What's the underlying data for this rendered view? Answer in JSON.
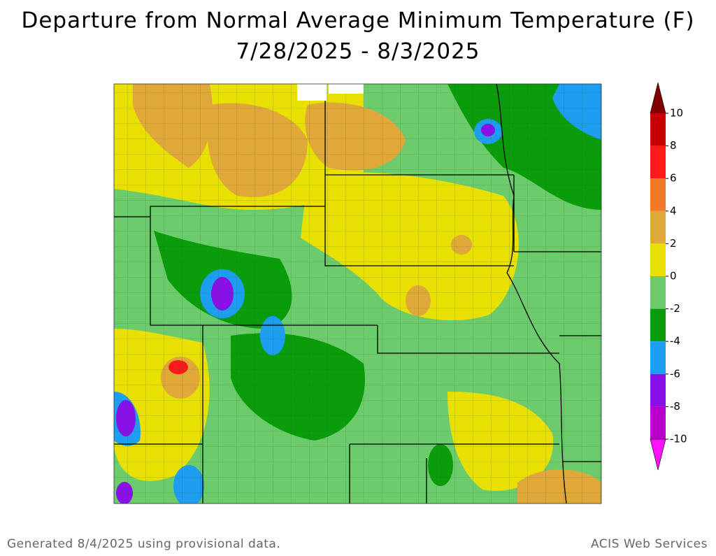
{
  "header": {
    "title": "Departure from Normal Average Minimum Temperature (F)",
    "subtitle": "7/28/2025 - 8/3/2025"
  },
  "colorbar": {
    "ticks": [
      10,
      8,
      6,
      4,
      2,
      0,
      -2,
      -4,
      -6,
      -8,
      -10
    ],
    "colors": [
      "#800000",
      "#c80000",
      "#ff1a1a",
      "#f07a28",
      "#e0a838",
      "#e8e000",
      "#6ccc6c",
      "#0a9c0a",
      "#1e9ef0",
      "#8a10e8",
      "#b800c8",
      "#ff10ff"
    ]
  },
  "footer": {
    "left": "Generated 8/4/2025 using provisional data.",
    "right": "ACIS Web Services"
  }
}
